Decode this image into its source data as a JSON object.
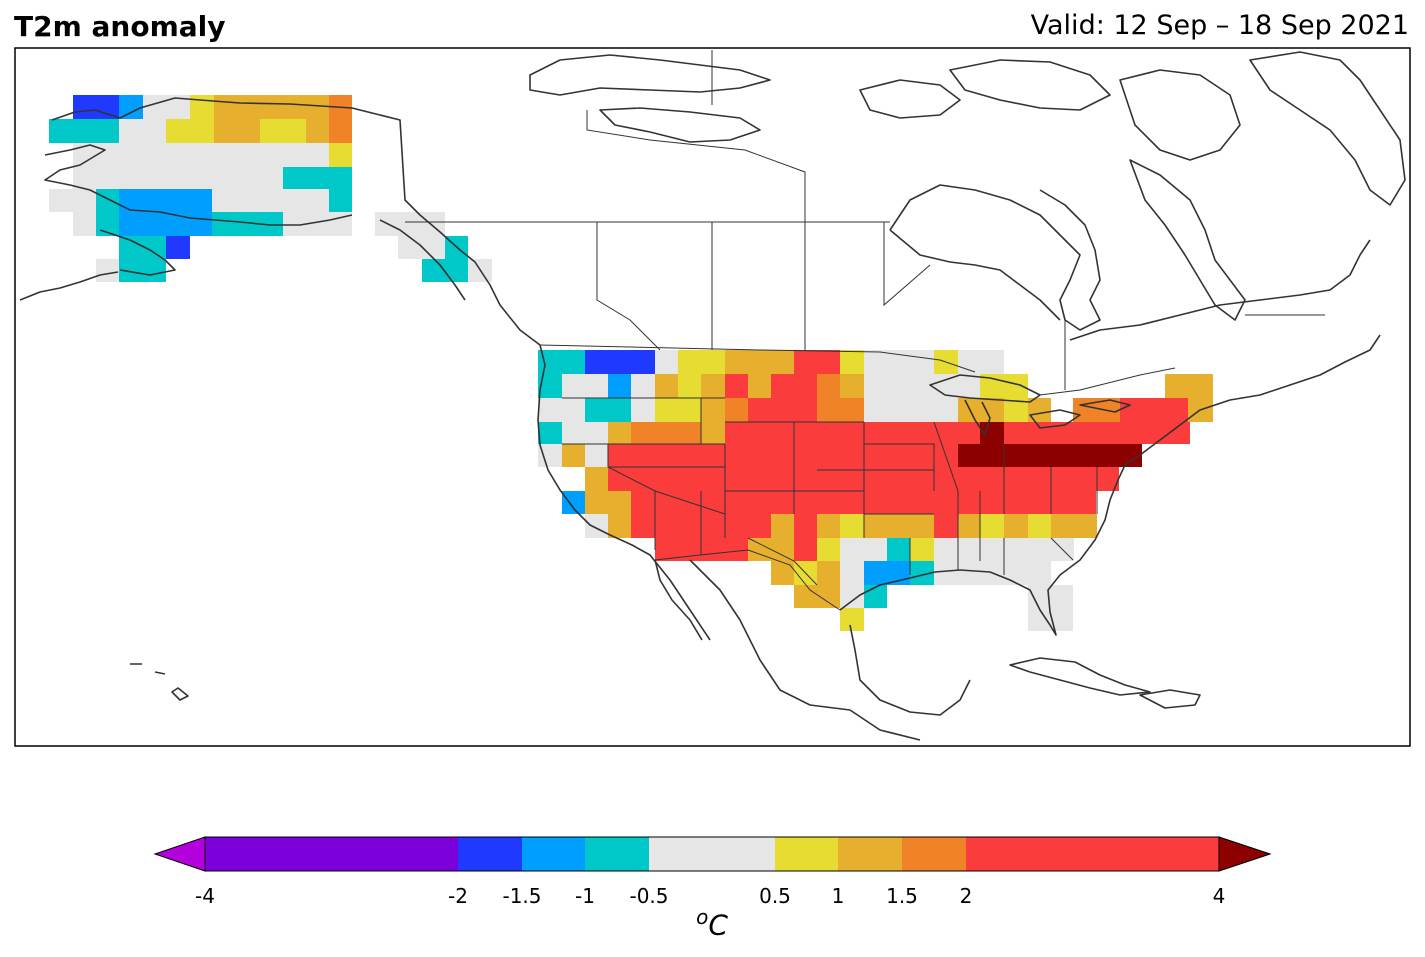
{
  "title": "T2m anomaly",
  "valid": "Valid: 12 Sep – 18 Sep 2021",
  "colorbar": {
    "ticks": [
      "-4",
      "-2",
      "-1.5",
      "-1",
      "-0.5",
      "0.5",
      "1",
      "1.5",
      "2",
      "4"
    ],
    "unit_sup": "o",
    "unit_main": "C",
    "bins": [
      {
        "from": -4,
        "to": -2,
        "color": "#7b00dc"
      },
      {
        "from": -2,
        "to": -1.5,
        "color": "#2039ff"
      },
      {
        "from": -1.5,
        "to": -1,
        "color": "#009eff"
      },
      {
        "from": -1,
        "to": -0.5,
        "color": "#00c8c8"
      },
      {
        "from": -0.5,
        "to": 0.5,
        "color": "#e6e6e6"
      },
      {
        "from": 0.5,
        "to": 1,
        "color": "#e6dc32"
      },
      {
        "from": 1,
        "to": 1.5,
        "color": "#e6af2d"
      },
      {
        "from": 1.5,
        "to": 2,
        "color": "#f08228"
      },
      {
        "from": 2,
        "to": 4,
        "color": "#fa3c3c"
      }
    ],
    "under_color": "#b400dc",
    "over_color": "#8c0000"
  }
}
